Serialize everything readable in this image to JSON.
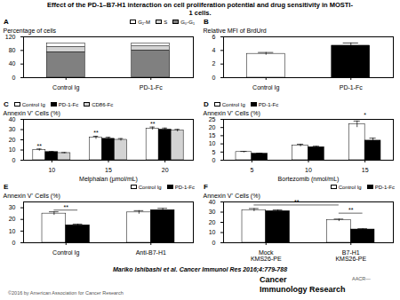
{
  "title": "Effect of the PD-1–B7-H1 interaction on cell proliferation potential and drug sensitivity in MOSTI-\n1 cells.",
  "chart_data": [
    {
      "type": "bar",
      "title": "A",
      "stacked": true,
      "categories": [
        "Control Ig",
        "PD-1-Fc"
      ],
      "series": [
        {
          "name": "G₂-M",
          "color": "white",
          "values": [
            10,
            8
          ]
        },
        {
          "name": "S",
          "color": "lightgray",
          "values": [
            15,
            12
          ]
        },
        {
          "name": "G₀-G₁",
          "color": "gray",
          "values": [
            75,
            80
          ]
        }
      ],
      "ylabel": "Percentage of cells",
      "ylim": [
        0,
        120
      ],
      "yticks": [
        0,
        40,
        80,
        120
      ],
      "legend": "upper right"
    },
    {
      "type": "bar",
      "title": "B",
      "categories": [
        "Control Ig",
        "PD-1-Fc"
      ],
      "values": [
        3.5,
        4.7
      ],
      "errors": [
        0.2,
        0.4
      ],
      "colors": [
        "white",
        "black"
      ],
      "ylabel": "Relative MFI of BrdUrd",
      "ylim": [
        0,
        6
      ],
      "yticks": [
        0,
        2,
        4,
        6
      ]
    },
    {
      "type": "bar",
      "title": "C",
      "categories": [
        10,
        15,
        20
      ],
      "series": [
        {
          "name": "Control Ig",
          "color": "white",
          "values": [
            10,
            22,
            31
          ],
          "errors": [
            1,
            1.5,
            1.5
          ]
        },
        {
          "name": "PD-1-Fc",
          "color": "black",
          "values": [
            8,
            21,
            30
          ],
          "errors": [
            0.5,
            1.5,
            1.5
          ]
        },
        {
          "name": "CD86-Fc",
          "color": "lightgray",
          "values": [
            7,
            20,
            29
          ],
          "errors": [
            0.5,
            1.2,
            1.2
          ]
        }
      ],
      "xlabel": "Melphalan (μmol/mL)",
      "ylabel": "Annexin V⁺ Cells (%)",
      "ylim": [
        0,
        40
      ],
      "yticks": [
        0,
        10,
        20,
        30,
        40
      ],
      "legend": "upper left",
      "annotations": [
        {
          "text": "**",
          "at": [
            [
              10,
              "Control Ig"
            ]
          ],
          "y": 12
        },
        {
          "text": "**",
          "at": [
            [
              15,
              "Control Ig"
            ]
          ],
          "y": 24.5
        },
        {
          "text": "**",
          "at": [
            [
              20,
              "Control Ig"
            ]
          ],
          "y": 33.5
        }
      ]
    },
    {
      "type": "bar",
      "title": "D",
      "categories": [
        5,
        10,
        15
      ],
      "series": [
        {
          "name": "Control Ig",
          "color": "white",
          "values": [
            5,
            9,
            22
          ],
          "errors": [
            0.4,
            0.8,
            2
          ]
        },
        {
          "name": "PD-1-Fc",
          "color": "black",
          "values": [
            4,
            8,
            12
          ],
          "errors": [
            0.3,
            0.6,
            1.5
          ]
        }
      ],
      "xlabel": "Bortezomib (nmol/mL)",
      "ylabel": "Annexin V⁺ Cells (%)",
      "ylim": [
        0,
        25
      ],
      "yticks": [
        0,
        5,
        10,
        15,
        20,
        25
      ],
      "legend": "upper left",
      "annotations": [
        {
          "text": "*",
          "at": [
            [
              15
            ]
          ],
          "y": 26.5
        }
      ]
    },
    {
      "type": "bar",
      "title": "E",
      "categories": [
        "Control Ig",
        "Anti-B7-H1"
      ],
      "series": [
        {
          "name": "Control Ig",
          "color": "white",
          "values": [
            25,
            26
          ],
          "errors": [
            1.5,
            1.5
          ]
        },
        {
          "name": "PD-1-Fc",
          "color": "black",
          "values": [
            15,
            28
          ],
          "errors": [
            1,
            1.5
          ]
        }
      ],
      "ylabel": "Annexin V⁺ Cells (%)",
      "ylim": [
        0,
        35
      ],
      "yticks": [
        0,
        10,
        20,
        30
      ],
      "legend": "upper right",
      "annotations": [
        {
          "bracket": [
            [
              "Control Ig",
              "Control Ig"
            ],
            [
              "Control Ig",
              "PD-1-Fc"
            ]
          ],
          "y": 28
        },
        {
          "text": "**",
          "at": [
            [
              "Control Ig"
            ]
          ],
          "y": 28.8
        }
      ]
    },
    {
      "type": "bar",
      "title": "F",
      "categories": [
        "Mock\nKMS26-PE",
        "B7-H1\nKMS26-PE"
      ],
      "series": [
        {
          "name": "Control Ig",
          "color": "white",
          "values": [
            32,
            22
          ],
          "errors": [
            1.5,
            1.2
          ]
        },
        {
          "name": "PD-1-Fc",
          "color": "black",
          "values": [
            31,
            13
          ],
          "errors": [
            1.2,
            0.8
          ]
        }
      ],
      "ylabel": "Annexin V⁺ Cells (%)",
      "ylim": [
        0,
        40
      ],
      "yticks": [
        0,
        10,
        20,
        30,
        40
      ],
      "legend": "upper right",
      "annotations": [
        {
          "bracket": [
            [
              "Mock\nKMS26-PE",
              "Control Ig"
            ],
            [
              "B7-H1\nKMS26-PE",
              "Control Ig"
            ]
          ],
          "y": 37
        },
        {
          "text": "**",
          "at": [
            [
              "Mock\nKMS26-PE",
              "Control Ig"
            ],
            [
              "B7-H1\nKMS26-PE",
              "Control Ig"
            ]
          ],
          "y": 37.8
        },
        {
          "bracket": [
            [
              "B7-H1\nKMS26-PE",
              "Control Ig"
            ],
            [
              "B7-H1\nKMS26-PE",
              "PD-1-Fc"
            ]
          ],
          "y": 29
        },
        {
          "text": "**",
          "at": [
            [
              "B7-H1\nKMS26-PE"
            ]
          ],
          "y": 29.8
        }
      ]
    }
  ],
  "citation": "Mariko Ishibashi et al. Cancer Immunol Res 2016;4:779-788",
  "copyright": "©2016 by American Association for Cancer Research",
  "journal": [
    "Cancer",
    "Immunology Research"
  ],
  "logo": "AACR—"
}
